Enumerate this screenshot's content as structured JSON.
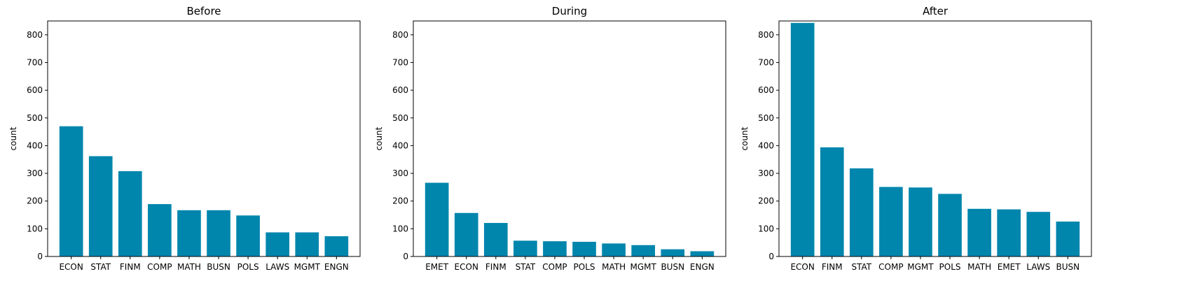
{
  "colors": {
    "bar": "#0086AD"
  },
  "chart_data": [
    {
      "type": "bar",
      "title": "Before",
      "xlabel": "",
      "ylabel": "count",
      "ylim": [
        0,
        850
      ],
      "yticks": [
        0,
        100,
        200,
        300,
        400,
        500,
        600,
        700,
        800
      ],
      "categories": [
        "ECON",
        "STAT",
        "FINM",
        "COMP",
        "MATH",
        "BUSN",
        "POLS",
        "LAWS",
        "MGMT",
        "ENGN"
      ],
      "values": [
        470,
        362,
        308,
        189,
        167,
        167,
        148,
        87,
        87,
        73
      ]
    },
    {
      "type": "bar",
      "title": "During",
      "xlabel": "",
      "ylabel": "count",
      "ylim": [
        0,
        850
      ],
      "yticks": [
        0,
        100,
        200,
        300,
        400,
        500,
        600,
        700,
        800
      ],
      "categories": [
        "EMET",
        "ECON",
        "FINM",
        "STAT",
        "COMP",
        "POLS",
        "MATH",
        "MGMT",
        "BUSN",
        "ENGN"
      ],
      "values": [
        266,
        157,
        121,
        57,
        55,
        53,
        47,
        41,
        26,
        19
      ]
    },
    {
      "type": "bar",
      "title": "After",
      "xlabel": "",
      "ylabel": "count",
      "ylim": [
        0,
        850
      ],
      "yticks": [
        0,
        100,
        200,
        300,
        400,
        500,
        600,
        700,
        800
      ],
      "categories": [
        "ECON",
        "FINM",
        "STAT",
        "COMP",
        "MGMT",
        "POLS",
        "MATH",
        "EMET",
        "LAWS",
        "BUSN"
      ],
      "values": [
        843,
        394,
        318,
        251,
        249,
        226,
        172,
        170,
        161,
        126
      ]
    }
  ]
}
